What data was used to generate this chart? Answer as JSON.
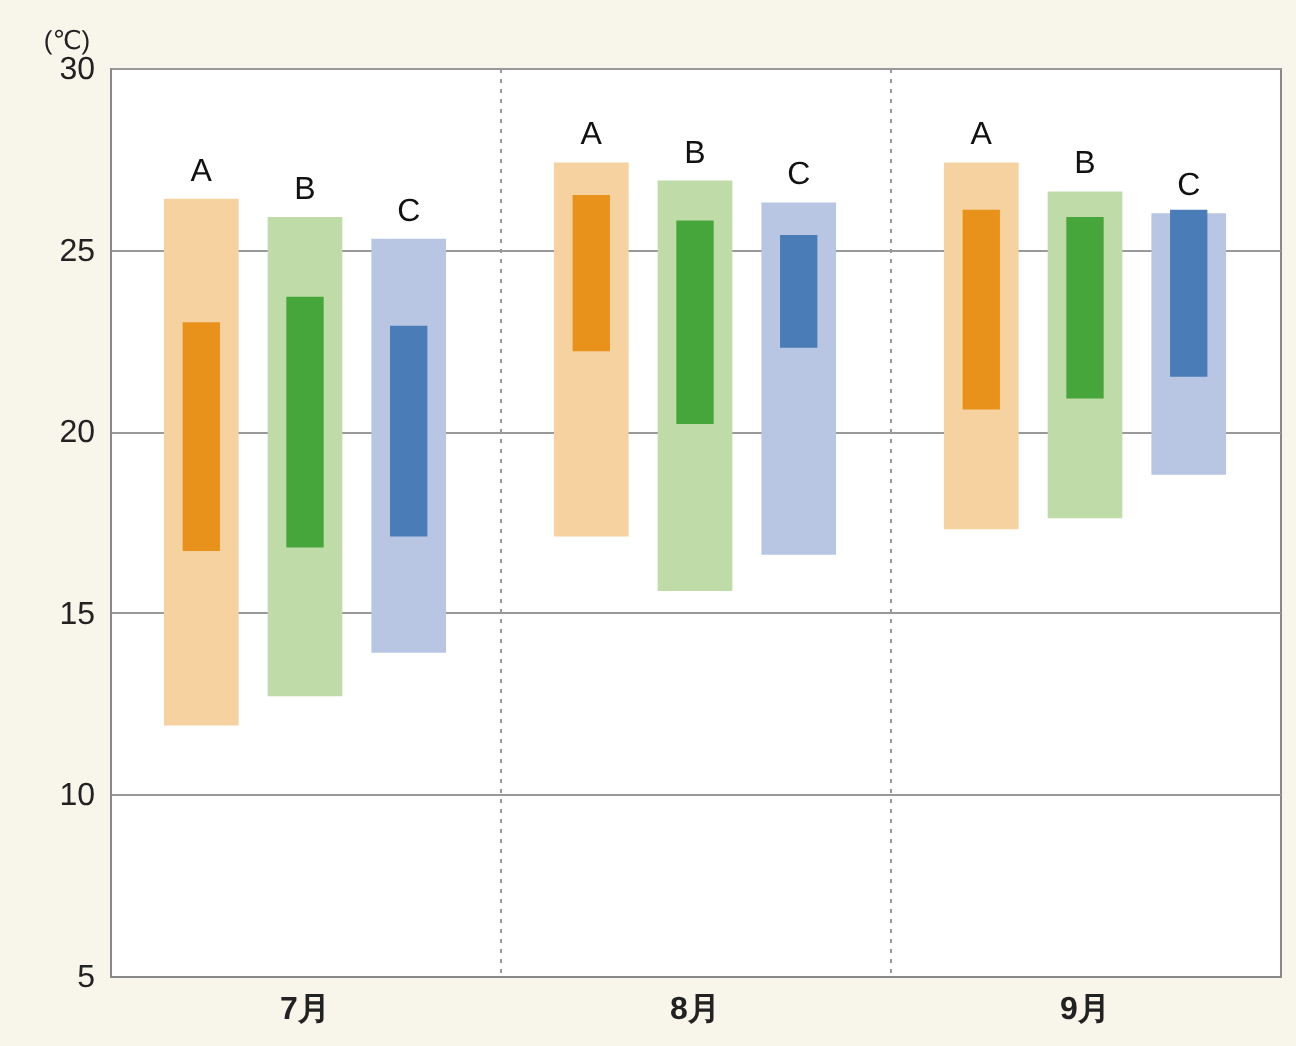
{
  "chart_data": {
    "type": "bar",
    "ylabel": "(℃)",
    "categories": [
      "7月",
      "8月",
      "9月"
    ],
    "series": [
      {
        "name": "A",
        "color": "#f5d29f",
        "base": [
          11.9,
          17.1,
          17.3
        ],
        "values": [
          14.5,
          10.3,
          10.1
        ]
      },
      {
        "color": "#e8921c",
        "base": [
          16.7,
          22.2,
          20.6
        ],
        "values": [
          6.3,
          4.3,
          5.5
        ]
      },
      {
        "name": "B",
        "color": "#bedba8",
        "base": [
          12.7,
          15.6,
          17.6
        ],
        "values": [
          13.2,
          11.3,
          9.0
        ]
      },
      {
        "color": "#46a63c",
        "base": [
          16.8,
          20.2,
          20.9
        ],
        "values": [
          6.9,
          5.6,
          5.0
        ]
      },
      {
        "name": "C",
        "color": "#b8c6e4",
        "base": [
          13.9,
          16.6,
          18.8
        ],
        "values": [
          11.4,
          9.7,
          7.2
        ]
      },
      {
        "color": "#4a7db8",
        "base": [
          17.1,
          22.3,
          21.5
        ],
        "values": [
          5.8,
          3.1,
          4.6
        ]
      }
    ],
    "ylim": [
      5,
      30
    ],
    "yticks": [
      5,
      10,
      15,
      20,
      25,
      30
    ],
    "grid": true
  }
}
